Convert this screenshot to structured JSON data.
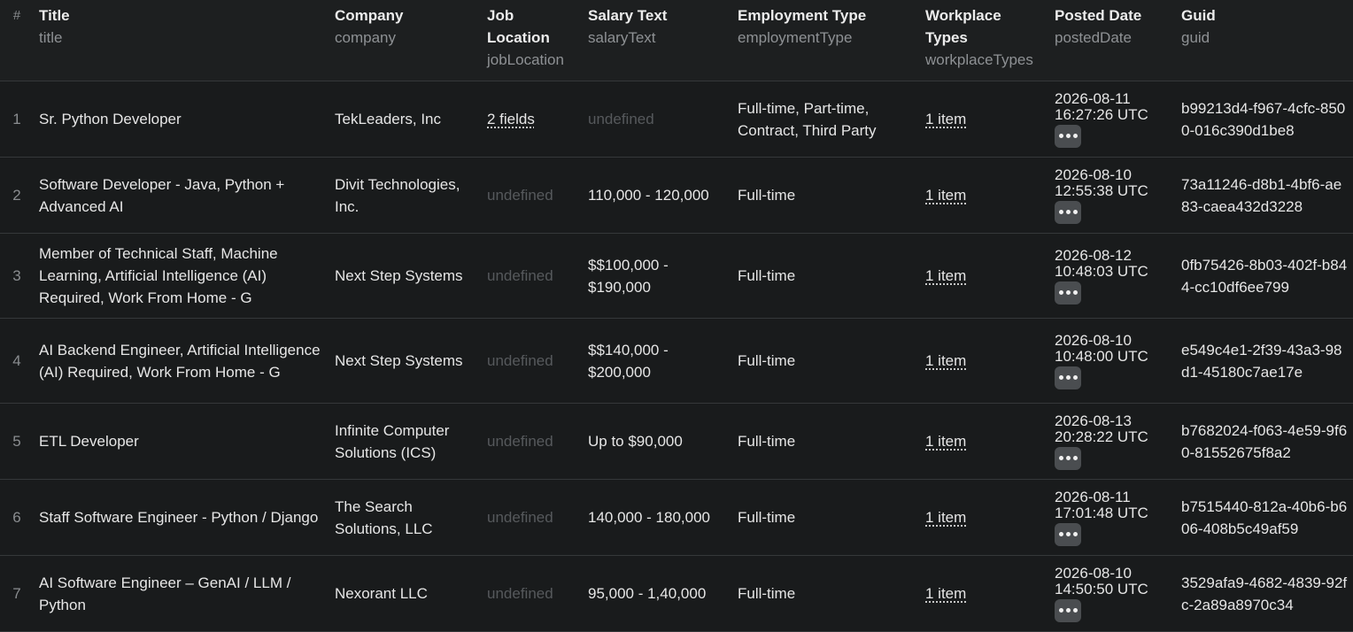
{
  "columns": [
    {
      "label": "#",
      "key": ""
    },
    {
      "label": "Title",
      "key": "title"
    },
    {
      "label": "Company",
      "key": "company"
    },
    {
      "label": "Job Location",
      "key": "jobLocation"
    },
    {
      "label": "Salary Text",
      "key": "salaryText"
    },
    {
      "label": "Employment Type",
      "key": "employmentType"
    },
    {
      "label": "Workplace Types",
      "key": "workplaceTypes"
    },
    {
      "label": "Posted Date",
      "key": "postedDate"
    },
    {
      "label": "Guid",
      "key": "guid"
    }
  ],
  "rows": [
    {
      "num": "1",
      "title": "Sr. Python Developer",
      "company": "TekLeaders, Inc",
      "jobLocation": "2 fields",
      "jobLocationUndefined": false,
      "salaryText": "undefined",
      "salaryUndefined": true,
      "employmentType": "Full-time, Part-time, Contract, Third Party",
      "workplaceTypes": "1 item",
      "postedDate": "2026-08-11 16:27:26 UTC",
      "guid": "b99213d4-f967-4cfc-8500-016c390d1be8"
    },
    {
      "num": "2",
      "title": "Software Developer - Java, Python + Advanced AI",
      "company": "Divit Technologies, Inc.",
      "jobLocation": "undefined",
      "jobLocationUndefined": true,
      "salaryText": "110,000 - 120,000",
      "salaryUndefined": false,
      "employmentType": "Full-time",
      "workplaceTypes": "1 item",
      "postedDate": "2026-08-10 12:55:38 UTC",
      "guid": "73a11246-d8b1-4bf6-ae83-caea432d3228"
    },
    {
      "num": "3",
      "title": "Member of Technical Staff, Machine Learning, Artificial Intelligence (AI) Required, Work From Home - G",
      "company": "Next Step Systems",
      "jobLocation": "undefined",
      "jobLocationUndefined": true,
      "salaryText": "$$100,000 - $190,000",
      "salaryUndefined": false,
      "employmentType": "Full-time",
      "workplaceTypes": "1 item",
      "postedDate": "2026-08-12 10:48:03 UTC",
      "guid": "0fb75426-8b03-402f-b844-cc10df6ee799"
    },
    {
      "num": "4",
      "title": "AI Backend Engineer, Artificial Intelligence (AI) Required, Work From Home - G",
      "company": "Next Step Systems",
      "jobLocation": "undefined",
      "jobLocationUndefined": true,
      "salaryText": "$$140,000 - $200,000",
      "salaryUndefined": false,
      "employmentType": "Full-time",
      "workplaceTypes": "1 item",
      "postedDate": "2026-08-10 10:48:00 UTC",
      "guid": "e549c4e1-2f39-43a3-98d1-45180c7ae17e"
    },
    {
      "num": "5",
      "title": "ETL Developer",
      "company": "Infinite Computer Solutions (ICS)",
      "jobLocation": "undefined",
      "jobLocationUndefined": true,
      "salaryText": "Up to $90,000",
      "salaryUndefined": false,
      "employmentType": "Full-time",
      "workplaceTypes": "1 item",
      "postedDate": "2026-08-13 20:28:22 UTC",
      "guid": "b7682024-f063-4e59-9f60-81552675f8a2"
    },
    {
      "num": "6",
      "title": "Staff Software Engineer - Python / Django",
      "company": "The Search Solutions, LLC",
      "jobLocation": "undefined",
      "jobLocationUndefined": true,
      "salaryText": "140,000 - 180,000",
      "salaryUndefined": false,
      "employmentType": "Full-time",
      "workplaceTypes": "1 item",
      "postedDate": "2026-08-11 17:01:48 UTC",
      "guid": "b7515440-812a-40b6-b606-408b5c49af59"
    },
    {
      "num": "7",
      "title": "AI Software Engineer – GenAI / LLM / Python",
      "company": "Nexorant LLC",
      "jobLocation": "undefined",
      "jobLocationUndefined": true,
      "salaryText": "95,000 - 1,40,000",
      "salaryUndefined": false,
      "employmentType": "Full-time",
      "workplaceTypes": "1 item",
      "postedDate": "2026-08-10 14:50:50 UTC",
      "guid": "3529afa9-4682-4839-92fc-2a89a8970c34"
    }
  ],
  "icons": {
    "more": "more-horizontal-icon"
  },
  "colors": {
    "background": "#191b1c",
    "header": "#1d1f20",
    "muted": "#56595c",
    "border": "#35383a"
  }
}
